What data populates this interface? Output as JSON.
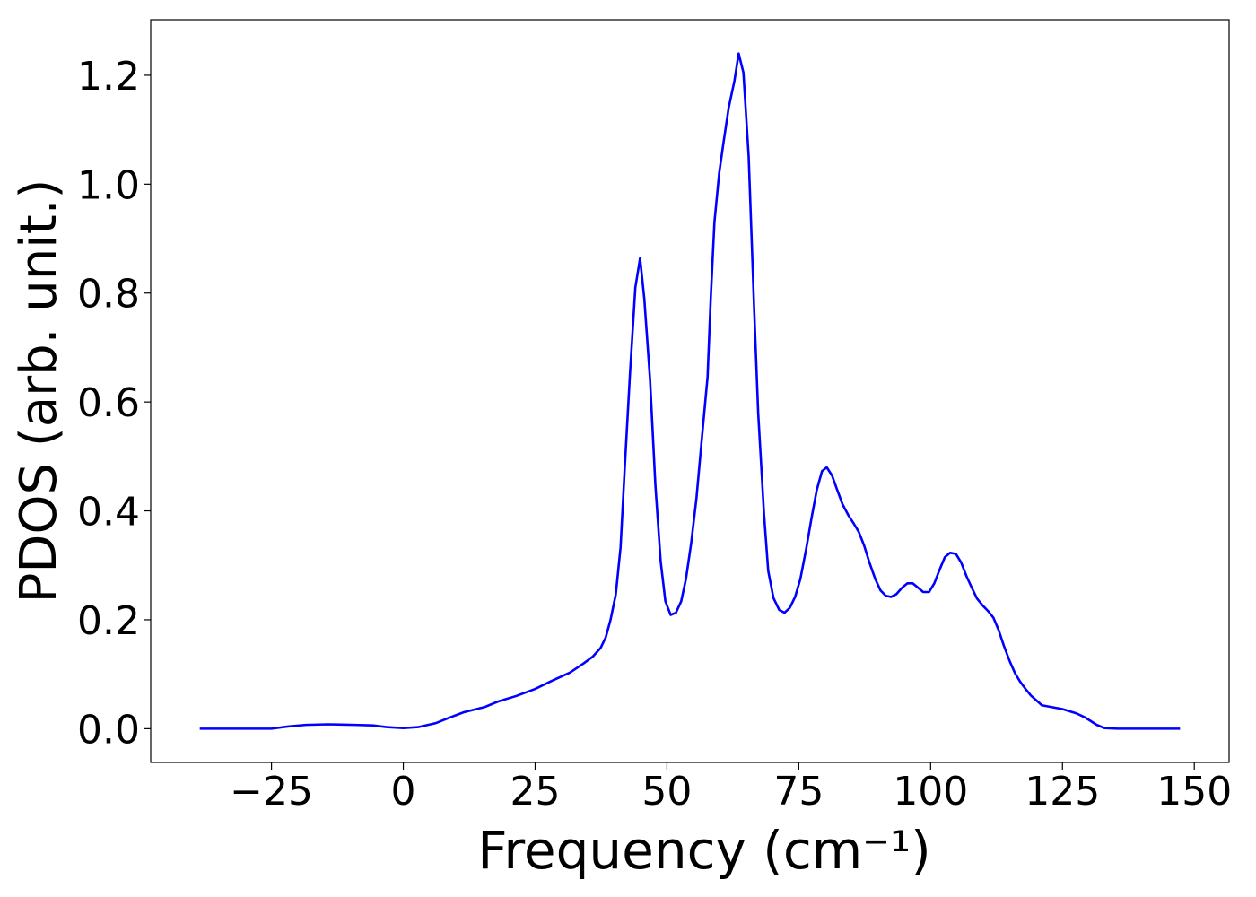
{
  "chart_data": {
    "type": "line",
    "xlabel": "Frequency (cm⁻¹)",
    "ylabel": "PDOS (arb. unit.)",
    "x": [
      -38.6,
      -25,
      -21.9,
      -18.5,
      -14.3,
      -9.2,
      -5.8,
      -3.2,
      0,
      2.9,
      6.1,
      8.7,
      11.4,
      15.5,
      18.0,
      21.4,
      25,
      28.2,
      31.6,
      34.2,
      35.9,
      37.4,
      38.4,
      39.3,
      40.3,
      41.2,
      42.0,
      43.0,
      44.0,
      44.9,
      45.7,
      46.8,
      47.8,
      48.8,
      49.7,
      50.7,
      51.7,
      52.7,
      53.6,
      54.6,
      55.6,
      56.6,
      57.7,
      58.3,
      59.0,
      59.9,
      60.7,
      61.7,
      62.8,
      63.6,
      64.5,
      65.5,
      66.5,
      67.3,
      68.4,
      69.2,
      70.2,
      71.3,
      72.3,
      73.3,
      74.3,
      75.3,
      76.4,
      77.4,
      78.4,
      79.4,
      80.3,
      81.3,
      82.3,
      83.3,
      84.4,
      85.4,
      86.4,
      87.4,
      88.4,
      89.5,
      90.5,
      91.5,
      92.5,
      93.5,
      94.6,
      95.6,
      96.6,
      97.6,
      98.6,
      99.7,
      100.7,
      101.7,
      102.7,
      103.7,
      104.8,
      105.8,
      106.8,
      107.8,
      108.8,
      109.9,
      110.9,
      111.9,
      112.9,
      113.9,
      115.0,
      116.0,
      117.0,
      118.0,
      119.0,
      121.1,
      125.0,
      127.7,
      129.4,
      131.5,
      133.0,
      135.4,
      147.3
    ],
    "series": [
      {
        "color": "#0000ff",
        "values": [
          0,
          0,
          0.004,
          0.007,
          0.008,
          0.007,
          0.006,
          0.003,
          0.001,
          0.003,
          0.01,
          0.02,
          0.03,
          0.04,
          0.05,
          0.06,
          0.073,
          0.088,
          0.103,
          0.12,
          0.132,
          0.148,
          0.168,
          0.2,
          0.247,
          0.333,
          0.48,
          0.654,
          0.81,
          0.864,
          0.79,
          0.64,
          0.448,
          0.308,
          0.234,
          0.209,
          0.213,
          0.234,
          0.275,
          0.341,
          0.424,
          0.531,
          0.646,
          0.79,
          0.93,
          1.02,
          1.075,
          1.14,
          1.19,
          1.24,
          1.205,
          1.05,
          0.78,
          0.58,
          0.395,
          0.29,
          0.24,
          0.218,
          0.213,
          0.222,
          0.242,
          0.275,
          0.33,
          0.386,
          0.438,
          0.473,
          0.48,
          0.465,
          0.438,
          0.412,
          0.392,
          0.377,
          0.361,
          0.336,
          0.305,
          0.275,
          0.254,
          0.244,
          0.242,
          0.247,
          0.259,
          0.267,
          0.267,
          0.259,
          0.251,
          0.251,
          0.267,
          0.292,
          0.315,
          0.323,
          0.321,
          0.305,
          0.28,
          0.259,
          0.239,
          0.226,
          0.216,
          0.204,
          0.181,
          0.152,
          0.124,
          0.102,
          0.086,
          0.073,
          0.061,
          0.043,
          0.036,
          0.028,
          0.02,
          0.007,
          0.001,
          0,
          0
        ]
      }
    ],
    "xlim": [
      -47.9,
      156.6
    ],
    "ylim": [
      -0.062,
      1.302
    ],
    "xticks": [
      {
        "value": -25,
        "label": "−25"
      },
      0,
      25,
      50,
      75,
      100,
      125,
      150
    ],
    "yticks": [
      {
        "value": 0,
        "label": "0.0"
      },
      0.2,
      0.4,
      0.6,
      0.8,
      {
        "value": 1,
        "label": "1.0"
      },
      1.2
    ]
  }
}
